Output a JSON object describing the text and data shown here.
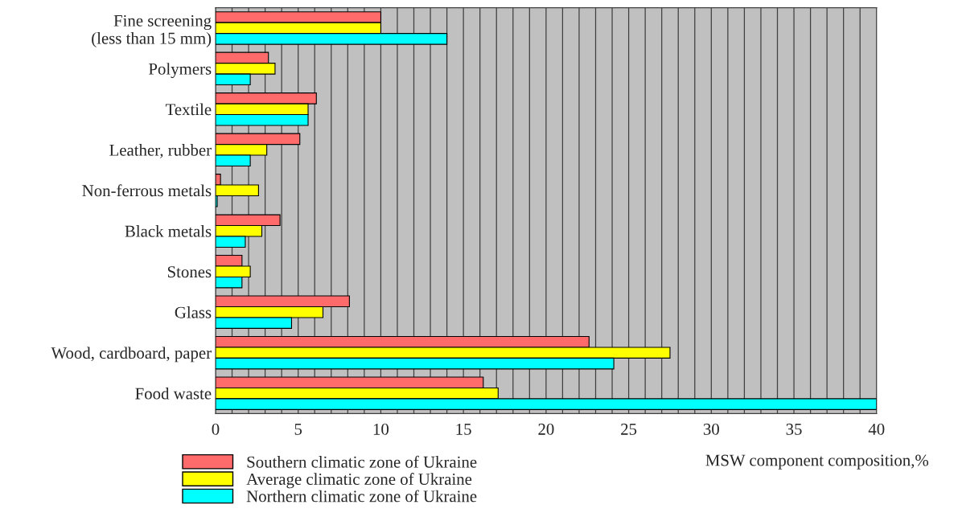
{
  "chart_data": {
    "type": "bar",
    "orientation": "horizontal",
    "xlabel": "MSW component composition,%",
    "categories": [
      "Fine screening\n(less than 15 mm)",
      "Polymers",
      "Textile",
      "Leather, rubber",
      "Non-ferrous metals",
      "Black metals",
      "Stones",
      "Glass",
      "Wood, cardboard, paper",
      "Food waste"
    ],
    "series": [
      {
        "name": "Southern climatic zone of Ukraine",
        "color": "#ff6b6b",
        "values": [
          10.0,
          3.2,
          6.1,
          5.1,
          0.3,
          3.9,
          1.6,
          8.1,
          22.6,
          16.2
        ]
      },
      {
        "name": "Average climatic zone of Ukraine",
        "color": "#ffff00",
        "values": [
          10.0,
          3.6,
          5.6,
          3.1,
          2.6,
          2.8,
          2.1,
          6.5,
          27.5,
          17.1
        ]
      },
      {
        "name": "Northern climatic zone of Ukraine",
        "color": "#00ffff",
        "values": [
          14.0,
          2.1,
          5.6,
          2.1,
          0.1,
          1.8,
          1.6,
          4.6,
          24.1,
          40.0
        ]
      }
    ],
    "xlim": [
      0,
      40
    ],
    "xticks": [
      0,
      {
        "value": 1,
        "label": null
      },
      {
        "value": 2,
        "label": null
      },
      {
        "value": 3,
        "label": null
      },
      {
        "value": 4,
        "label": null
      },
      5,
      {
        "value": 6,
        "label": null
      },
      {
        "value": 7,
        "label": null
      },
      {
        "value": 8,
        "label": null
      },
      {
        "value": 9,
        "label": null
      },
      10,
      {
        "value": 11,
        "label": null
      },
      {
        "value": 12,
        "label": null
      },
      {
        "value": 13,
        "label": null
      },
      {
        "value": 14,
        "label": null
      },
      15,
      {
        "value": 16,
        "label": null
      },
      {
        "value": 17,
        "label": null
      },
      {
        "value": 18,
        "label": null
      },
      {
        "value": 19,
        "label": null
      },
      20,
      {
        "value": 21,
        "label": null
      },
      {
        "value": 22,
        "label": null
      },
      {
        "value": 23,
        "label": null
      },
      {
        "value": 24,
        "label": null
      },
      25,
      {
        "value": 26,
        "label": null
      },
      {
        "value": 27,
        "label": null
      },
      {
        "value": 28,
        "label": null
      },
      {
        "value": 29,
        "label": null
      },
      30,
      {
        "value": 31,
        "label": null
      },
      {
        "value": 32,
        "label": null
      },
      {
        "value": 33,
        "label": null
      },
      {
        "value": 34,
        "label": null
      },
      35,
      {
        "value": 36,
        "label": null
      },
      {
        "value": 37,
        "label": null
      },
      {
        "value": 38,
        "label": null
      },
      {
        "value": 39,
        "label": null
      },
      40
    ],
    "grid": "x",
    "legend": "bottom left"
  }
}
